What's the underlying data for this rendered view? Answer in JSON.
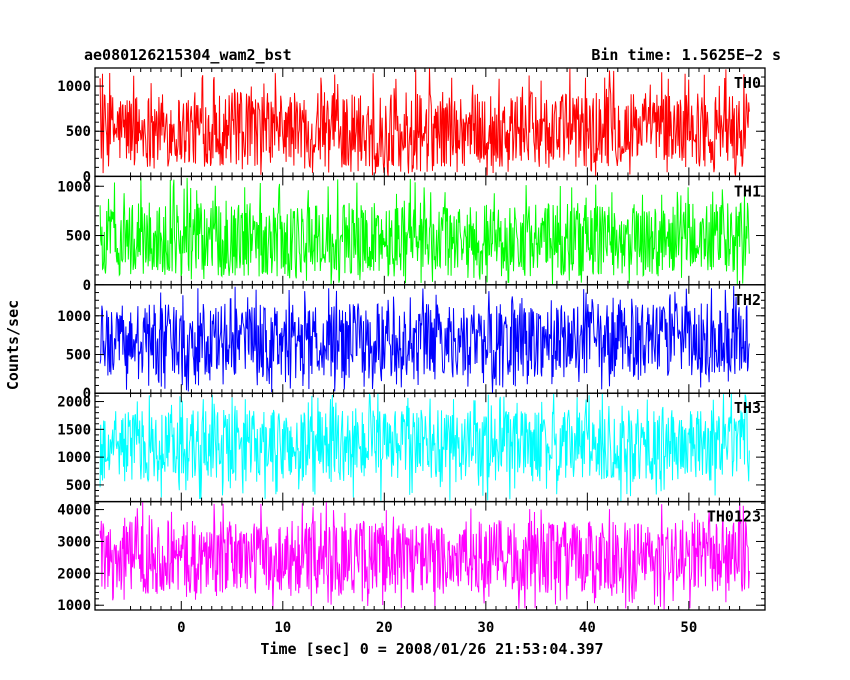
{
  "header": {
    "title": "ae080126215304_wam2_bst",
    "bin_time": "Bin time: 1.5625E−2 s"
  },
  "chart_data": {
    "type": "line",
    "xlabel": "Time [sec] 0 = 2008/01/26 21:53:04.397",
    "ylabel": "Counts/sec",
    "xlim": [
      -8.5,
      57.5
    ],
    "data_range": [
      -8.0,
      56.0
    ],
    "xticks": [
      0,
      10,
      20,
      30,
      40,
      50
    ],
    "xtick_labels": [
      "0",
      "10",
      "20",
      "30",
      "40",
      "50"
    ],
    "panels": [
      {
        "name": "TH0",
        "color": "#ff0000",
        "ylim": [
          0,
          1200
        ],
        "yticks": [
          0,
          500,
          1000
        ],
        "ytick_labels": [
          "0",
          "500",
          "1000"
        ],
        "mean": 520,
        "typical_low": 120,
        "typical_high": 950,
        "min_seen": 0,
        "max_seen": 1200
      },
      {
        "name": "TH1",
        "color": "#00ff00",
        "ylim": [
          0,
          1100
        ],
        "yticks": [
          0,
          500,
          1000
        ],
        "ytick_labels": [
          "0",
          "500",
          "1000"
        ],
        "mean": 460,
        "typical_low": 100,
        "typical_high": 850,
        "min_seen": 0,
        "max_seen": 1100
      },
      {
        "name": "TH2",
        "color": "#0000ff",
        "ylim": [
          0,
          1400
        ],
        "yticks": [
          0,
          500,
          1000
        ],
        "ytick_labels": [
          "0",
          "500",
          "1000"
        ],
        "mean": 680,
        "typical_low": 200,
        "typical_high": 1150,
        "min_seen": 0,
        "max_seen": 1400
      },
      {
        "name": "TH3",
        "color": "#00ffff",
        "ylim": [
          200,
          2150
        ],
        "yticks": [
          500,
          1000,
          1500,
          2000
        ],
        "ytick_labels": [
          "500",
          "1000",
          "1500",
          "2000"
        ],
        "mean": 1200,
        "typical_low": 500,
        "typical_high": 1800,
        "min_seen": 200,
        "max_seen": 2150
      },
      {
        "name": "TH0123",
        "color": "#ff00ff",
        "ylim": [
          850,
          4250
        ],
        "yticks": [
          1000,
          2000,
          3000,
          4000
        ],
        "ytick_labels": [
          "1000",
          "2000",
          "3000",
          "4000"
        ],
        "mean": 2500,
        "typical_low": 1300,
        "typical_high": 3600,
        "min_seen": 850,
        "max_seen": 4250
      }
    ]
  }
}
